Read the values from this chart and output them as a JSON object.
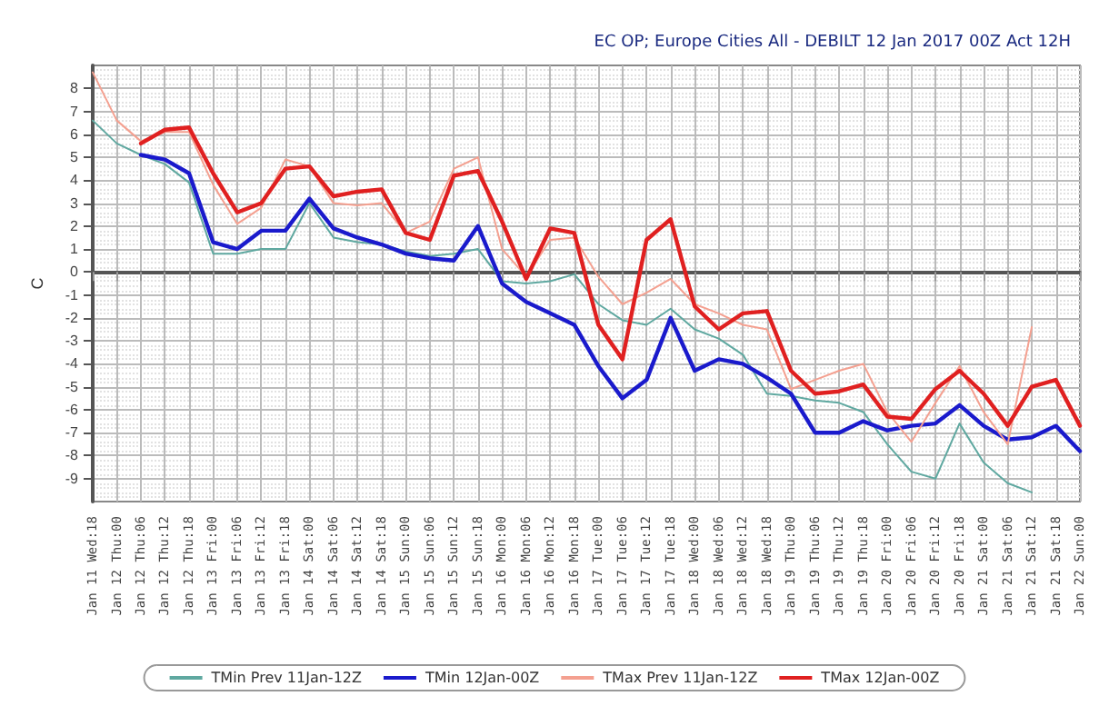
{
  "chart_data": {
    "type": "line",
    "title": "EC OP; Europe Cities All - DEBILT 12 Jan 2017 00Z Act 12H",
    "ylabel": "C",
    "categories": [
      "Jan 11 Wed:18",
      "Jan 12 Thu:00",
      "Jan 12 Thu:06",
      "Jan 12 Thu:12",
      "Jan 12 Thu:18",
      "Jan 13 Fri:00",
      "Jan 13 Fri:06",
      "Jan 13 Fri:12",
      "Jan 13 Fri:18",
      "Jan 14 Sat:00",
      "Jan 14 Sat:06",
      "Jan 14 Sat:12",
      "Jan 14 Sat:18",
      "Jan 15 Sun:00",
      "Jan 15 Sun:06",
      "Jan 15 Sun:12",
      "Jan 15 Sun:18",
      "Jan 16 Mon:00",
      "Jan 16 Mon:06",
      "Jan 16 Mon:12",
      "Jan 16 Mon:18",
      "Jan 17 Tue:00",
      "Jan 17 Tue:06",
      "Jan 17 Tue:12",
      "Jan 17 Tue:18",
      "Jan 18 Wed:00",
      "Jan 18 Wed:06",
      "Jan 18 Wed:12",
      "Jan 18 Wed:18",
      "Jan 19 Thu:00",
      "Jan 19 Thu:06",
      "Jan 19 Thu:12",
      "Jan 19 Thu:18",
      "Jan 20 Fri:00",
      "Jan 20 Fri:06",
      "Jan 20 Fri:12",
      "Jan 20 Fri:18",
      "Jan 21 Sat:00",
      "Jan 21 Sat:06",
      "Jan 21 Sat:12",
      "Jan 21 Sat:18",
      "Jan 22 Sun:00"
    ],
    "series": [
      {
        "name": "TMin Prev 11Jan-12Z",
        "color": "#5fa8a0",
        "values": [
          6.6,
          5.6,
          5.1,
          4.7,
          3.9,
          0.8,
          0.8,
          1.0,
          1.0,
          3.0,
          1.5,
          1.3,
          1.2,
          0.9,
          0.7,
          0.8,
          1.0,
          -0.4,
          -0.5,
          -0.4,
          -0.1,
          -1.4,
          -2.1,
          -2.3,
          -1.6,
          -2.5,
          -2.9,
          -3.6,
          -5.3,
          -5.4,
          -5.6,
          -5.7,
          -6.1,
          -7.5,
          -8.7,
          -9.0,
          -6.6,
          -8.3,
          -9.2,
          -9.6,
          null,
          null
        ]
      },
      {
        "name": "TMin 12Jan-00Z",
        "color": "#1a1acc",
        "values": [
          null,
          null,
          5.1,
          4.9,
          4.3,
          1.3,
          1.0,
          1.8,
          1.8,
          3.2,
          1.9,
          1.5,
          1.2,
          0.8,
          0.6,
          0.5,
          2.0,
          -0.5,
          -1.3,
          -1.8,
          -2.3,
          -4.1,
          -5.5,
          -4.7,
          -2.0,
          -4.3,
          -3.8,
          -4.0,
          -4.6,
          -5.3,
          -7.0,
          -7.0,
          -6.5,
          -6.9,
          -6.7,
          -6.6,
          -5.8,
          -6.7,
          -7.3,
          -7.2,
          -6.7,
          -7.8
        ]
      },
      {
        "name": "TMax Prev 11Jan-12Z",
        "color": "#f4a090",
        "values": [
          8.7,
          6.6,
          5.7,
          6.1,
          6.1,
          3.8,
          2.1,
          2.8,
          4.9,
          4.6,
          3.0,
          2.9,
          3.0,
          1.7,
          2.2,
          4.5,
          5.0,
          1.0,
          -0.2,
          1.4,
          1.5,
          -0.2,
          -1.4,
          -0.9,
          -0.3,
          -1.4,
          -1.8,
          -2.3,
          -2.5,
          -5.1,
          -4.7,
          -4.3,
          -4.0,
          -6.1,
          -7.4,
          -5.7,
          -4.1,
          -6.1,
          -7.5,
          -2.4,
          null,
          null
        ]
      },
      {
        "name": "TMax 12Jan-00Z",
        "color": "#e02020",
        "values": [
          null,
          null,
          5.6,
          6.2,
          6.3,
          4.3,
          2.6,
          3.0,
          4.5,
          4.6,
          3.3,
          3.5,
          3.6,
          1.7,
          1.4,
          4.2,
          4.4,
          2.2,
          -0.3,
          1.9,
          1.7,
          -2.3,
          -3.8,
          1.4,
          2.3,
          -1.5,
          -2.5,
          -1.8,
          -1.7,
          -4.3,
          -5.3,
          -5.2,
          -4.9,
          -6.3,
          -6.4,
          -5.1,
          -4.3,
          -5.3,
          -6.7,
          -5.0,
          -4.7,
          -6.7
        ]
      }
    ],
    "ylim": [
      -10,
      9
    ],
    "yticks": [
      -9,
      -8,
      -7,
      -6,
      -5,
      -4,
      -3,
      -2,
      -1,
      0,
      1,
      2,
      3,
      4,
      5,
      6,
      7,
      8
    ],
    "grid": true,
    "legend": "bottom",
    "marker": "none",
    "line_style": "solid"
  }
}
